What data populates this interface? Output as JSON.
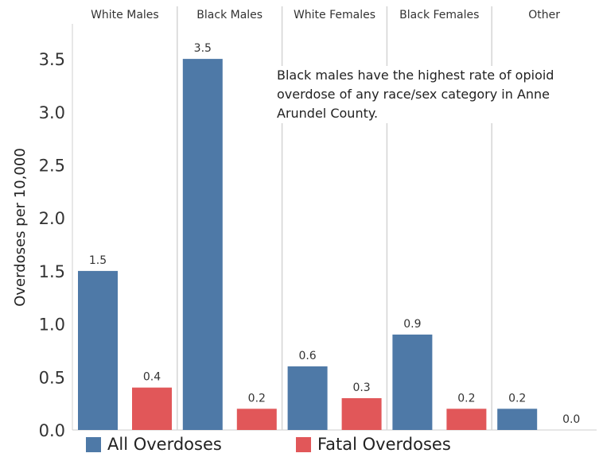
{
  "chart_data": {
    "type": "bar",
    "categories": [
      "White Males",
      "Black Males",
      "White Females",
      "Black Females",
      "Other"
    ],
    "series": [
      {
        "name": "All Overdoses",
        "values": [
          1.5,
          3.5,
          0.6,
          0.9,
          0.2
        ],
        "labels": [
          "1.5",
          "3.5",
          "0.6",
          "0.9",
          "0.2"
        ],
        "color": "#4e79a7"
      },
      {
        "name": "Fatal Overdoses",
        "values": [
          0.4,
          0.2,
          0.3,
          0.2,
          0.0
        ],
        "labels": [
          "0.4",
          "0.2",
          "0.3",
          "0.2",
          "0.0"
        ],
        "color": "#e15759"
      }
    ],
    "ylabel": "Overdoses per 10,000",
    "xlabel": "",
    "ylim": [
      0,
      3.9
    ],
    "yticks": [
      "0.0",
      "0.5",
      "1.0",
      "1.5",
      "2.0",
      "2.5",
      "3.0",
      "3.5"
    ],
    "grid": false,
    "legend_position": "bottom-left",
    "annotation": "Black males have the highest rate of opioid overdose of any race/sex category in Anne Arundel County."
  }
}
